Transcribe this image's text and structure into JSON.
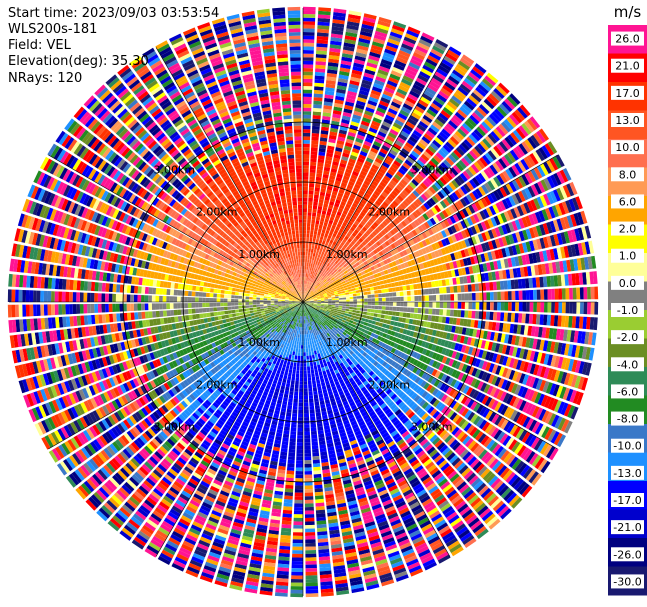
{
  "header": {
    "start_time": "Start time: 2023/09/03 03:53:54",
    "instrument": "WLS200s-181",
    "field": "Field: VEL",
    "elevation": "Elevation(deg): 35.30",
    "nrays": "NRays: 120"
  },
  "chart_data": {
    "type": "polar-ppi",
    "field": "VEL",
    "units": "m/s",
    "rings_km": [
      1.0,
      2.0,
      3.0
    ],
    "max_range_km": 4.9,
    "ring_labels": [
      "1.00km",
      "2.00km",
      "3.00km"
    ],
    "ray_count": 120,
    "colorbar": {
      "unit_label": "m/s",
      "ticks": [
        "26.0",
        "21.0",
        "17.0",
        "13.0",
        "10.0",
        "8.0",
        "6.0",
        "2.0",
        "1.0",
        "0.0",
        "-1.0",
        "-2.0",
        "-4.0",
        "-6.0",
        "-8.0",
        "-10.0",
        "-13.0",
        "-17.0",
        "-21.0",
        "-26.0",
        "-30.0"
      ],
      "bins": [
        {
          "min": 21,
          "max": 30,
          "color": "#ff1493"
        },
        {
          "min": 17,
          "max": 21,
          "color": "#ff0000"
        },
        {
          "min": 13,
          "max": 17,
          "color": "#ff3300"
        },
        {
          "min": 10,
          "max": 13,
          "color": "#ff5522"
        },
        {
          "min": 8,
          "max": 10,
          "color": "#ff6f4f"
        },
        {
          "min": 6,
          "max": 8,
          "color": "#ff9a55"
        },
        {
          "min": 2,
          "max": 6,
          "color": "#ffa500"
        },
        {
          "min": 1,
          "max": 2,
          "color": "#ffff00"
        },
        {
          "min": 0,
          "max": 1,
          "color": "#ffff99"
        },
        {
          "min": -1,
          "max": 0,
          "color": "#808080"
        },
        {
          "min": -2,
          "max": -1,
          "color": "#9acd32"
        },
        {
          "min": -4,
          "max": -2,
          "color": "#6b8e23"
        },
        {
          "min": -6,
          "max": -4,
          "color": "#2e8b57"
        },
        {
          "min": -8,
          "max": -6,
          "color": "#228b22"
        },
        {
          "min": -10,
          "max": -8,
          "color": "#3a78c8"
        },
        {
          "min": -13,
          "max": -10,
          "color": "#1e90ff"
        },
        {
          "min": -17,
          "max": -13,
          "color": "#0000ff"
        },
        {
          "min": -21,
          "max": -17,
          "color": "#0000cd"
        },
        {
          "min": -26,
          "max": -21,
          "color": "#000080"
        },
        {
          "min": -30,
          "max": -26,
          "color": "#191970"
        }
      ]
    },
    "pattern": {
      "core_range_km": 2.7,
      "positive_sector": "north",
      "negative_sector": "south",
      "peak_velocity": 17.0,
      "far_range": "noise"
    }
  }
}
